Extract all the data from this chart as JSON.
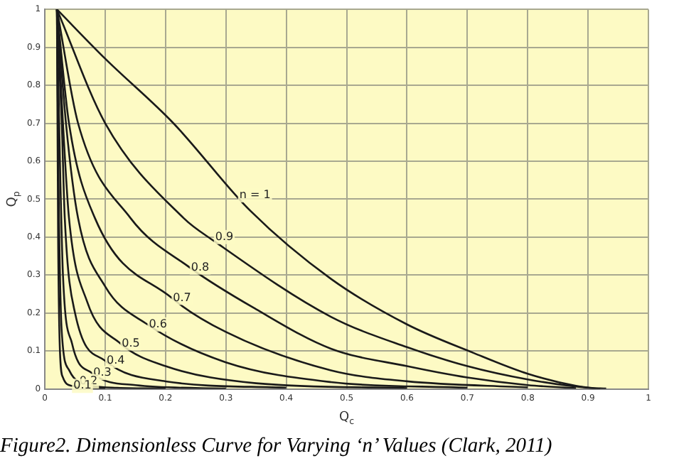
{
  "chart_data": {
    "type": "line",
    "xlabel": "Q$_{c}$",
    "ylabel": "Q$_{p}$",
    "xlim": [
      0,
      1
    ],
    "ylim": [
      0,
      1
    ],
    "xticks": [
      0,
      0.1,
      0.2,
      0.3,
      0.4,
      0.5,
      0.6,
      0.7,
      0.8,
      0.9,
      1
    ],
    "yticks": [
      0,
      0.1,
      0.2,
      0.3,
      0.4,
      0.5,
      0.6,
      0.7,
      0.8,
      0.9,
      1
    ],
    "grid": true,
    "legend": false,
    "marker": "none",
    "line_style": "solid",
    "series": [
      {
        "color": "#1a1a1a",
        "x": [
          0.02,
          0.1,
          0.213,
          0.34,
          0.474,
          0.6,
          0.71,
          0.8,
          0.88,
          0.92
        ],
        "values": [
          1,
          0.87,
          0.7,
          0.47,
          0.29,
          0.17,
          0.095,
          0.04,
          0.008,
          0
        ]
      },
      {
        "color": "#1a1a1a",
        "x": [
          0.02,
          0.1,
          0.23,
          0.28,
          0.474,
          0.6,
          0.7,
          0.8,
          0.9,
          0.93
        ],
        "values": [
          1,
          0.7,
          0.45,
          0.39,
          0.19,
          0.11,
          0.06,
          0.025,
          0.003,
          0.001
        ]
      },
      {
        "color": "#1a1a1a",
        "x": [
          0.02,
          0.055,
          0.142,
          0.24,
          0.35,
          0.474,
          0.6,
          0.7,
          0.8,
          0.88
        ],
        "values": [
          1,
          0.7,
          0.45,
          0.32,
          0.21,
          0.106,
          0.06,
          0.03,
          0.01,
          0.002
        ]
      },
      {
        "color": "#1a1a1a",
        "x": [
          0.02,
          0.04,
          0.083,
          0.21,
          0.3,
          0.474,
          0.6,
          0.8
        ],
        "values": [
          1,
          0.7,
          0.45,
          0.24,
          0.15,
          0.049,
          0.02,
          0.004
        ]
      },
      {
        "color": "#1a1a1a",
        "x": [
          0.02,
          0.035,
          0.055,
          0.1,
          0.17,
          0.3,
          0.474,
          0.7
        ],
        "values": [
          1,
          0.7,
          0.45,
          0.27,
          0.17,
          0.07,
          0.018,
          0.003
        ]
      },
      {
        "color": "#1a1a1a",
        "x": [
          0.02,
          0.03,
          0.04,
          0.07,
          0.125,
          0.2,
          0.35,
          0.6
        ],
        "values": [
          1,
          0.7,
          0.45,
          0.23,
          0.12,
          0.06,
          0.015,
          0.002
        ]
      },
      {
        "color": "#1a1a1a",
        "x": [
          0.02,
          0.028,
          0.033,
          0.05,
          0.1,
          0.2,
          0.4
        ],
        "values": [
          1,
          0.7,
          0.45,
          0.2,
          0.074,
          0.02,
          0.003
        ]
      },
      {
        "color": "#1a1a1a",
        "x": [
          0.02,
          0.025,
          0.03,
          0.045,
          0.078,
          0.15,
          0.3
        ],
        "values": [
          1,
          0.6,
          0.3,
          0.12,
          0.042,
          0.01,
          0.001
        ]
      },
      {
        "color": "#1a1a1a",
        "x": [
          0.02,
          0.023,
          0.028,
          0.04,
          0.055,
          0.12,
          0.2
        ],
        "values": [
          1,
          0.5,
          0.15,
          0.05,
          0.02,
          0.003,
          0.001
        ]
      },
      {
        "color": "#1a1a1a",
        "x": [
          0.02,
          0.022,
          0.025,
          0.03,
          0.045,
          0.1
        ],
        "values": [
          1,
          0.4,
          0.1,
          0.03,
          0.008,
          0.001
        ]
      }
    ],
    "annotations": [
      {
        "text": "n = 1",
        "x": 0.32,
        "y": 0.51
      },
      {
        "text": "0.9",
        "x": 0.28,
        "y": 0.4
      },
      {
        "text": "0.8",
        "x": 0.24,
        "y": 0.32
      },
      {
        "text": "0.7",
        "x": 0.21,
        "y": 0.24
      },
      {
        "text": "0.6",
        "x": 0.17,
        "y": 0.17
      },
      {
        "text": "0.5",
        "x": 0.125,
        "y": 0.12
      },
      {
        "text": "0.4",
        "x": 0.1,
        "y": 0.074
      },
      {
        "text": "0.3",
        "x": 0.078,
        "y": 0.042
      },
      {
        "text": "0.2",
        "x": 0.055,
        "y": 0.02
      },
      {
        "text": "0.1",
        "x": 0.045,
        "y": 0.008
      },
      "Figure2. Dimensionless Curve for Varying ‘n’ Values (Clark, 2011)"
    ]
  }
}
